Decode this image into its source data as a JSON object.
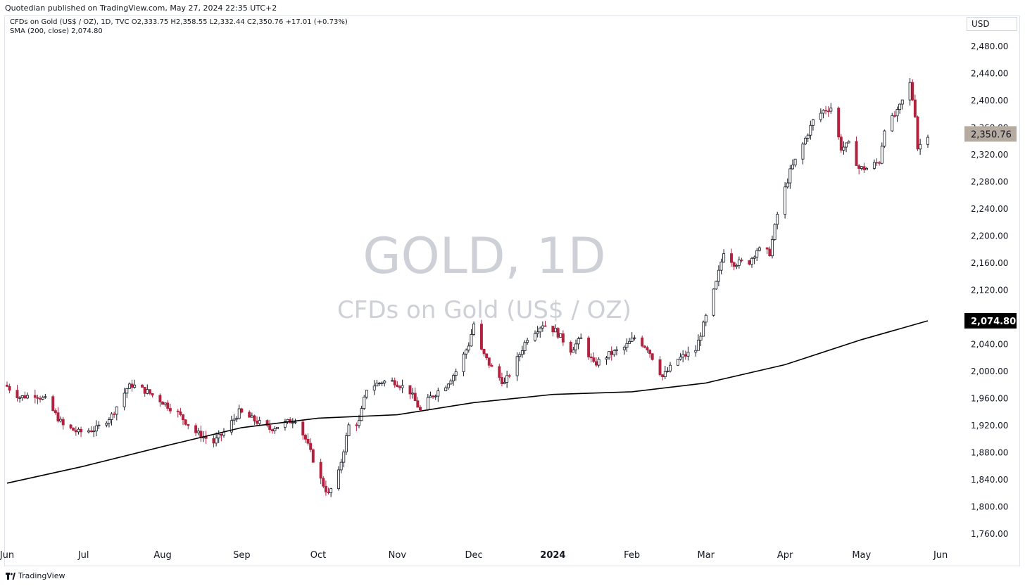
{
  "header": {
    "published": "Quotedian published on TradingView.com, May 27, 2024 22:35 UTC+2",
    "legend_main": "CFDs on Gold (US$ / OZ), 1D, TVC  O2,333.75  H2,358.55  L2,332.44  C2,350.76  +17.01 (+0.73%)",
    "legend_sma": "SMA (200, close)  2,074.80",
    "currency": "USD"
  },
  "watermark": {
    "symbol": "GOLD, 1D",
    "description": "CFDs on Gold (US$ / OZ)"
  },
  "footer": {
    "brand": "TradingView"
  },
  "colors": {
    "up": "#ffffff",
    "up_border": "#131722",
    "down": "#b2223f",
    "sma": "#000000",
    "price_label": "#b6aba0",
    "sma_label": "#000000",
    "watermark": "#cdd0d6"
  },
  "chart_data": {
    "type": "candlestick",
    "x": [
      "2023-06-01",
      "2024-05-27"
    ],
    "ylim": [
      1740,
      2500
    ],
    "y_ticks": [
      "2,480.00",
      "2,440.00",
      "2,400.00",
      "2,360.00",
      "2,320.00",
      "2,280.00",
      "2,240.00",
      "2,200.00",
      "2,160.00",
      "2,120.00",
      "2,080.00",
      "2,040.00",
      "2,000.00",
      "1,960.00",
      "1,920.00",
      "1,880.00",
      "1,840.00",
      "1,800.00",
      "1,760.00"
    ],
    "x_ticks": [
      {
        "label": "Jun",
        "date": "2023-06-01"
      },
      {
        "label": "Jul",
        "date": "2023-07-01"
      },
      {
        "label": "Aug",
        "date": "2023-08-01"
      },
      {
        "label": "Sep",
        "date": "2023-09-01"
      },
      {
        "label": "Oct",
        "date": "2023-10-01"
      },
      {
        "label": "Nov",
        "date": "2023-11-01"
      },
      {
        "label": "Dec",
        "date": "2023-12-01"
      },
      {
        "label": "2024",
        "date": "2024-01-01",
        "bold": true
      },
      {
        "label": "Feb",
        "date": "2024-02-01"
      },
      {
        "label": "Mar",
        "date": "2024-03-01"
      },
      {
        "label": "Apr",
        "date": "2024-04-01"
      },
      {
        "label": "May",
        "date": "2024-05-01"
      },
      {
        "label": "Jun",
        "date": "2024-06-01"
      }
    ],
    "last_price": {
      "value": 2350.76,
      "label": "2,350.76"
    },
    "sma_value": {
      "value": 2074.8,
      "label": "2,074.80"
    },
    "price_path": [
      [
        "2023-06-01",
        1978
      ],
      [
        "2023-06-06",
        1962
      ],
      [
        "2023-06-12",
        1966
      ],
      [
        "2023-06-16",
        1958
      ],
      [
        "2023-06-23",
        1920
      ],
      [
        "2023-06-29",
        1910
      ],
      [
        "2023-07-06",
        1915
      ],
      [
        "2023-07-12",
        1935
      ],
      [
        "2023-07-18",
        1975
      ],
      [
        "2023-07-20",
        1980
      ],
      [
        "2023-07-26",
        1970
      ],
      [
        "2023-08-01",
        1955
      ],
      [
        "2023-08-07",
        1938
      ],
      [
        "2023-08-14",
        1910
      ],
      [
        "2023-08-21",
        1895
      ],
      [
        "2023-08-25",
        1910
      ],
      [
        "2023-08-31",
        1940
      ],
      [
        "2023-09-05",
        1930
      ],
      [
        "2023-09-12",
        1915
      ],
      [
        "2023-09-19",
        1925
      ],
      [
        "2023-09-22",
        1930
      ],
      [
        "2023-09-26",
        1900
      ],
      [
        "2023-10-02",
        1840
      ],
      [
        "2023-10-05",
        1818
      ],
      [
        "2023-10-09",
        1850
      ],
      [
        "2023-10-13",
        1920
      ],
      [
        "2023-10-17",
        1925
      ],
      [
        "2023-10-20",
        1975
      ],
      [
        "2023-10-26",
        1985
      ],
      [
        "2023-10-31",
        1985
      ],
      [
        "2023-11-06",
        1970
      ],
      [
        "2023-11-10",
        1942
      ],
      [
        "2023-11-14",
        1962
      ],
      [
        "2023-11-20",
        1980
      ],
      [
        "2023-11-24",
        2000
      ],
      [
        "2023-11-29",
        2040
      ],
      [
        "2023-12-01",
        2070
      ],
      [
        "2023-12-04",
        2030
      ],
      [
        "2023-12-08",
        2005
      ],
      [
        "2023-12-13",
        1982
      ],
      [
        "2023-12-18",
        2018
      ],
      [
        "2023-12-22",
        2050
      ],
      [
        "2023-12-28",
        2070
      ],
      [
        "2024-01-02",
        2060
      ],
      [
        "2024-01-08",
        2032
      ],
      [
        "2024-01-12",
        2048
      ],
      [
        "2024-01-17",
        2010
      ],
      [
        "2024-01-23",
        2025
      ],
      [
        "2024-01-29",
        2035
      ],
      [
        "2024-02-02",
        2050
      ],
      [
        "2024-02-07",
        2035
      ],
      [
        "2024-02-13",
        1992
      ],
      [
        "2024-02-19",
        2018
      ],
      [
        "2024-02-26",
        2032
      ],
      [
        "2024-03-01",
        2080
      ],
      [
        "2024-03-05",
        2130
      ],
      [
        "2024-03-08",
        2178
      ],
      [
        "2024-03-12",
        2160
      ],
      [
        "2024-03-18",
        2162
      ],
      [
        "2024-03-21",
        2180
      ],
      [
        "2024-03-26",
        2175
      ],
      [
        "2024-03-29",
        2232
      ],
      [
        "2024-04-03",
        2295
      ],
      [
        "2024-04-08",
        2335
      ],
      [
        "2024-04-12",
        2370
      ],
      [
        "2024-04-16",
        2385
      ],
      [
        "2024-04-19",
        2390
      ],
      [
        "2024-04-23",
        2330
      ],
      [
        "2024-04-26",
        2335
      ],
      [
        "2024-04-30",
        2300
      ],
      [
        "2024-05-03",
        2300
      ],
      [
        "2024-05-08",
        2310
      ],
      [
        "2024-05-10",
        2360
      ],
      [
        "2024-05-15",
        2382
      ],
      [
        "2024-05-20",
        2425
      ],
      [
        "2024-05-22",
        2380
      ],
      [
        "2024-05-23",
        2330
      ],
      [
        "2024-05-27",
        2350.76
      ]
    ],
    "sma_path": [
      [
        "2023-06-01",
        1835
      ],
      [
        "2023-07-01",
        1860
      ],
      [
        "2023-08-01",
        1889
      ],
      [
        "2023-09-01",
        1917
      ],
      [
        "2023-10-01",
        1931
      ],
      [
        "2023-11-01",
        1936
      ],
      [
        "2023-12-01",
        1954
      ],
      [
        "2024-01-01",
        1966
      ],
      [
        "2024-02-01",
        1970
      ],
      [
        "2024-03-01",
        1983
      ],
      [
        "2024-04-01",
        2010
      ],
      [
        "2024-05-01",
        2047
      ],
      [
        "2024-05-27",
        2074.8
      ]
    ]
  }
}
